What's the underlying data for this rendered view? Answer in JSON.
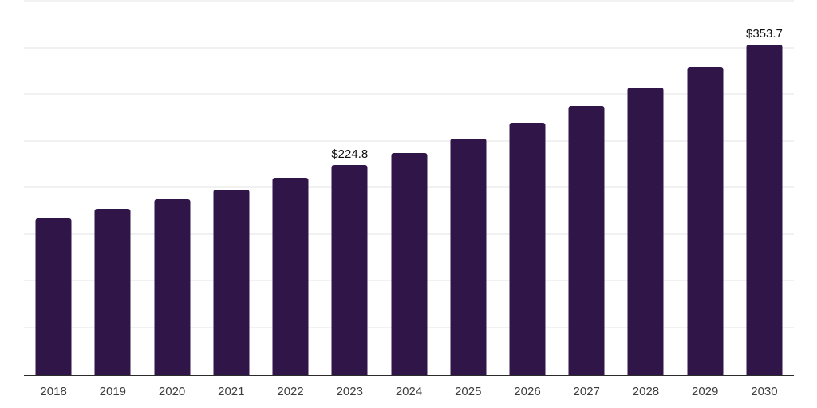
{
  "chart_data": {
    "type": "bar",
    "title": "",
    "xlabel": "",
    "ylabel": "",
    "categories": [
      "2018",
      "2019",
      "2020",
      "2021",
      "2022",
      "2023",
      "2024",
      "2025",
      "2026",
      "2027",
      "2028",
      "2029",
      "2030"
    ],
    "values": [
      167.9,
      177.8,
      187.9,
      198.6,
      211.1,
      224.8,
      237.7,
      253.0,
      270.1,
      288.1,
      307.8,
      329.9,
      353.7
    ],
    "value_labels": [
      {
        "category": "2023",
        "text": "$224.8"
      },
      {
        "category": "2030",
        "text": "$353.7"
      }
    ],
    "ylim": [
      0,
      400
    ],
    "grid": true,
    "gridline_step": 50,
    "y_tick_labels_shown": false,
    "legend_position": "none",
    "colors": {
      "bar": "#301648",
      "gridline": "#f1f1f1",
      "axis_line": "#2b2b2b",
      "tick_label": "#3d3d3d",
      "value_label": "#111111",
      "background": "#ffffff"
    }
  }
}
